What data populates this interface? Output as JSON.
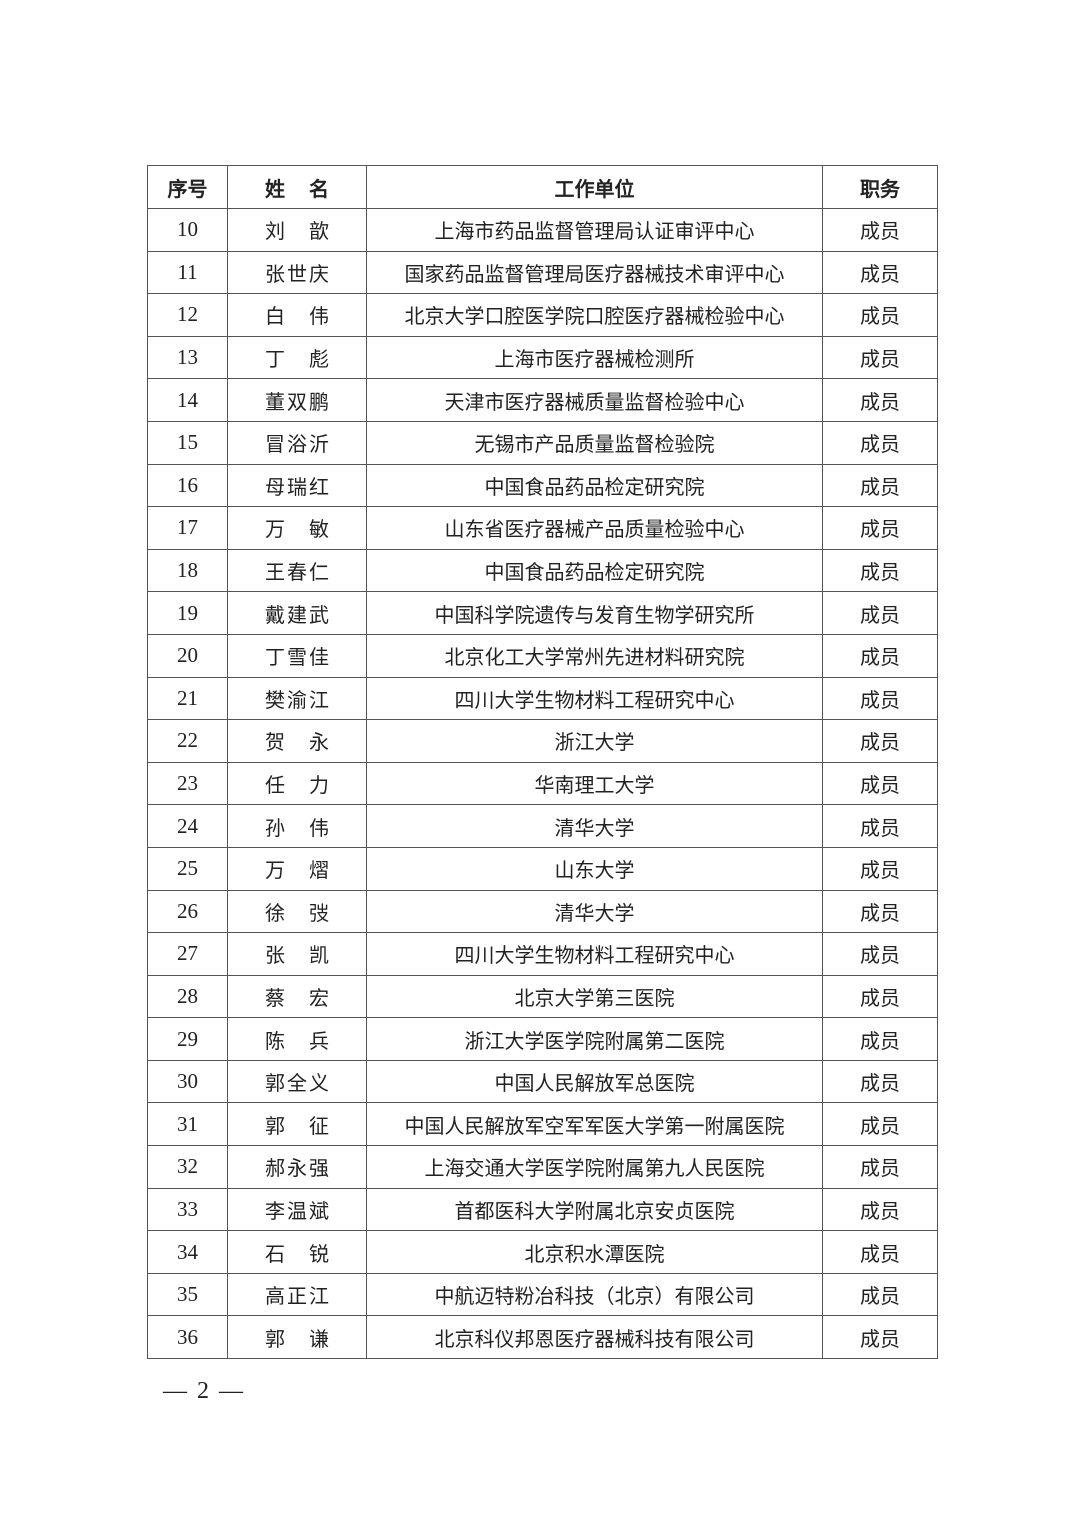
{
  "table": {
    "headers": [
      "序号",
      "姓名",
      "工作单位",
      "职务"
    ],
    "rows": [
      [
        "10",
        "刘歆",
        "上海市药品监督管理局认证审评中心",
        "成员"
      ],
      [
        "11",
        "张世庆",
        "国家药品监督管理局医疗器械技术审评中心",
        "成员"
      ],
      [
        "12",
        "白伟",
        "北京大学口腔医学院口腔医疗器械检验中心",
        "成员"
      ],
      [
        "13",
        "丁彪",
        "上海市医疗器械检测所",
        "成员"
      ],
      [
        "14",
        "董双鹏",
        "天津市医疗器械质量监督检验中心",
        "成员"
      ],
      [
        "15",
        "冒浴沂",
        "无锡市产品质量监督检验院",
        "成员"
      ],
      [
        "16",
        "母瑞红",
        "中国食品药品检定研究院",
        "成员"
      ],
      [
        "17",
        "万敏",
        "山东省医疗器械产品质量检验中心",
        "成员"
      ],
      [
        "18",
        "王春仁",
        "中国食品药品检定研究院",
        "成员"
      ],
      [
        "19",
        "戴建武",
        "中国科学院遗传与发育生物学研究所",
        "成员"
      ],
      [
        "20",
        "丁雪佳",
        "北京化工大学常州先进材料研究院",
        "成员"
      ],
      [
        "21",
        "樊渝江",
        "四川大学生物材料工程研究中心",
        "成员"
      ],
      [
        "22",
        "贺永",
        "浙江大学",
        "成员"
      ],
      [
        "23",
        "任力",
        "华南理工大学",
        "成员"
      ],
      [
        "24",
        "孙伟",
        "清华大学",
        "成员"
      ],
      [
        "25",
        "万熠",
        "山东大学",
        "成员"
      ],
      [
        "26",
        "徐弢",
        "清华大学",
        "成员"
      ],
      [
        "27",
        "张凯",
        "四川大学生物材料工程研究中心",
        "成员"
      ],
      [
        "28",
        "蔡宏",
        "北京大学第三医院",
        "成员"
      ],
      [
        "29",
        "陈兵",
        "浙江大学医学院附属第二医院",
        "成员"
      ],
      [
        "30",
        "郭全义",
        "中国人民解放军总医院",
        "成员"
      ],
      [
        "31",
        "郭征",
        "中国人民解放军空军军医大学第一附属医院",
        "成员"
      ],
      [
        "32",
        "郝永强",
        "上海交通大学医学院附属第九人民医院",
        "成员"
      ],
      [
        "33",
        "李温斌",
        "首都医科大学附属北京安贞医院",
        "成员"
      ],
      [
        "34",
        "石锐",
        "北京积水潭医院",
        "成员"
      ],
      [
        "35",
        "高正江",
        "中航迈特粉冶科技（北京）有限公司",
        "成员"
      ],
      [
        "36",
        "郭谦",
        "北京科仪邦恩医疗器械科技有限公司",
        "成员"
      ]
    ]
  },
  "footer": {
    "page_number": "— 2 —"
  }
}
